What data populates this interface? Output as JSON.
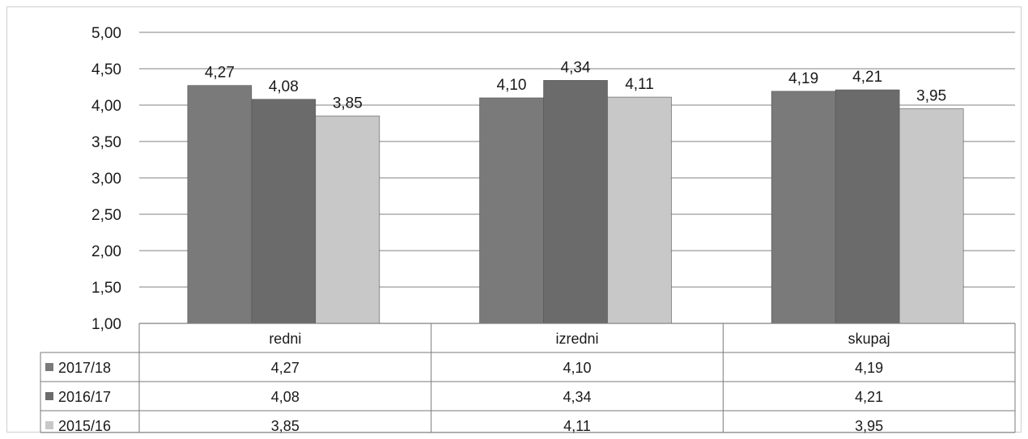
{
  "chart_data": {
    "type": "bar",
    "categories": [
      "redni",
      "izredni",
      "skupaj"
    ],
    "series": [
      {
        "name": "2017/18",
        "values": [
          4.27,
          4.1,
          4.19
        ],
        "color": "#7a7a7a"
      },
      {
        "name": "2016/17",
        "values": [
          4.08,
          4.34,
          4.21
        ],
        "color": "#6b6b6b"
      },
      {
        "name": "2015/16",
        "values": [
          3.85,
          4.11,
          3.95
        ],
        "color": "#c8c8c8"
      }
    ],
    "value_labels": [
      [
        "4,27",
        "4,10",
        "4,19"
      ],
      [
        "4,08",
        "4,34",
        "4,21"
      ],
      [
        "3,85",
        "4,11",
        "3,95"
      ]
    ],
    "y_ticks": [
      "1,00",
      "1,50",
      "2,00",
      "2,50",
      "3,00",
      "3,50",
      "4,00",
      "4,50",
      "5,00"
    ],
    "ylim": [
      1.0,
      5.0
    ],
    "grid": true,
    "legend": "data-table-left",
    "title": "",
    "xlabel": "",
    "ylabel": ""
  }
}
